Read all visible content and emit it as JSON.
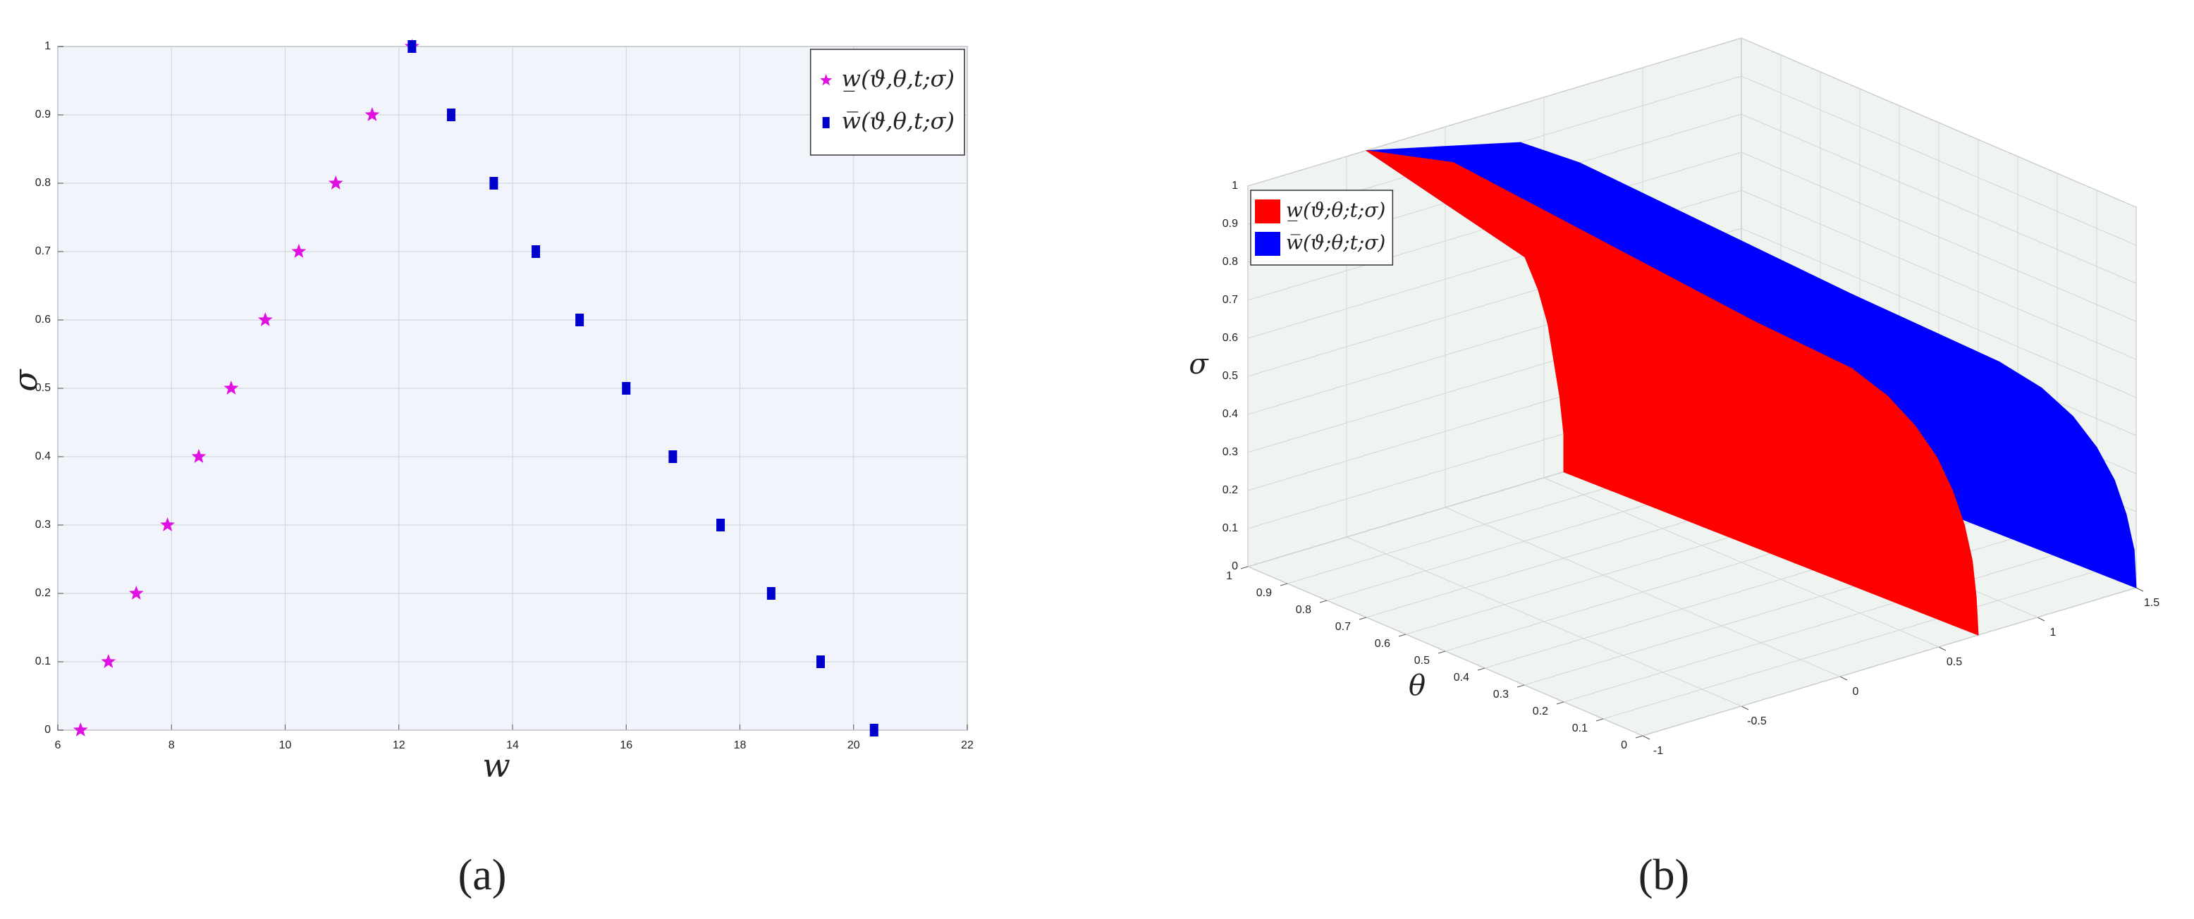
{
  "chart_data": [
    {
      "type": "scatter",
      "xlabel": "w",
      "ylabel": "σ",
      "caption": "(a)",
      "xlim": [
        6,
        22
      ],
      "xticks": [
        6,
        8,
        10,
        12,
        14,
        16,
        18,
        20,
        22
      ],
      "ylim": [
        0,
        1
      ],
      "yticks": [
        0,
        0.1,
        0.2,
        0.3,
        0.4,
        0.5,
        0.6,
        0.7,
        0.8,
        0.9,
        1
      ],
      "grid": true,
      "facecolor": "#f1f5fb",
      "legend": "upper right",
      "series": [
        {
          "name": "w̲(ϑ,θ,t;σ)",
          "color": "#e010e0",
          "marker": "star",
          "x": [
            6.4,
            6.89,
            7.38,
            7.93,
            8.48,
            9.05,
            9.65,
            10.24,
            10.89,
            11.53,
            12.23
          ],
          "values": [
            0,
            0.1,
            0.2,
            0.3,
            0.4,
            0.5,
            0.6,
            0.7,
            0.8,
            0.9,
            1
          ]
        },
        {
          "name": "w̅(ϑ,θ,t;σ)",
          "color": "#0000cc",
          "marker": "square",
          "x": [
            20.36,
            19.42,
            18.55,
            17.66,
            16.82,
            16.0,
            15.18,
            14.41,
            13.67,
            12.92,
            12.23
          ],
          "values": [
            0,
            0.1,
            0.2,
            0.3,
            0.4,
            0.5,
            0.6,
            0.7,
            0.8,
            0.9,
            1
          ]
        }
      ]
    },
    {
      "type": "surface",
      "ylabel": "θ",
      "zlabel": "σ",
      "caption": "(b)",
      "xlim": [
        -1,
        1.5
      ],
      "xticks": [
        -1,
        -0.5,
        0,
        0.5,
        1,
        1.5
      ],
      "ylim": [
        0,
        1
      ],
      "yticks": [
        0,
        0.1,
        0.2,
        0.3,
        0.4,
        0.5,
        0.6,
        0.7,
        0.8,
        0.9,
        1
      ],
      "zlim": [
        0,
        1
      ],
      "zticks": [
        0,
        0.1,
        0.2,
        0.3,
        0.4,
        0.5,
        0.6,
        0.7,
        0.8,
        0.9,
        1
      ],
      "grid": true,
      "legend": "upper left",
      "y": [
        0,
        1
      ],
      "z": [
        0,
        0.1,
        0.2,
        0.3,
        0.4,
        0.5,
        0.6,
        0.7,
        0.8,
        0.9,
        1
      ],
      "series": [
        {
          "name": "w̲(ϑ;θ;t;σ)",
          "color": "#ff0000",
          "values": [
            [
              0.7,
              0.69,
              0.67,
              0.63,
              0.57,
              0.49,
              0.38,
              0.24,
              0.06,
              -0.2,
              -0.9
            ],
            [
              0.6,
              0.6,
              0.58,
              0.55,
              0.52,
              0.47,
              0.4,
              0.31,
              0.2,
              0.04,
              -0.4
            ]
          ]
        },
        {
          "name": "w̅(ϑ;θ;t;σ)",
          "color": "#0000ff",
          "values": [
            [
              1.5,
              1.49,
              1.45,
              1.39,
              1.3,
              1.18,
              1.02,
              0.81,
              0.54,
              0.15,
              -0.9
            ],
            [
              1.4,
              1.39,
              1.36,
              1.32,
              1.25,
              1.16,
              1.04,
              0.89,
              0.68,
              0.38,
              -0.4
            ]
          ]
        }
      ]
    }
  ]
}
